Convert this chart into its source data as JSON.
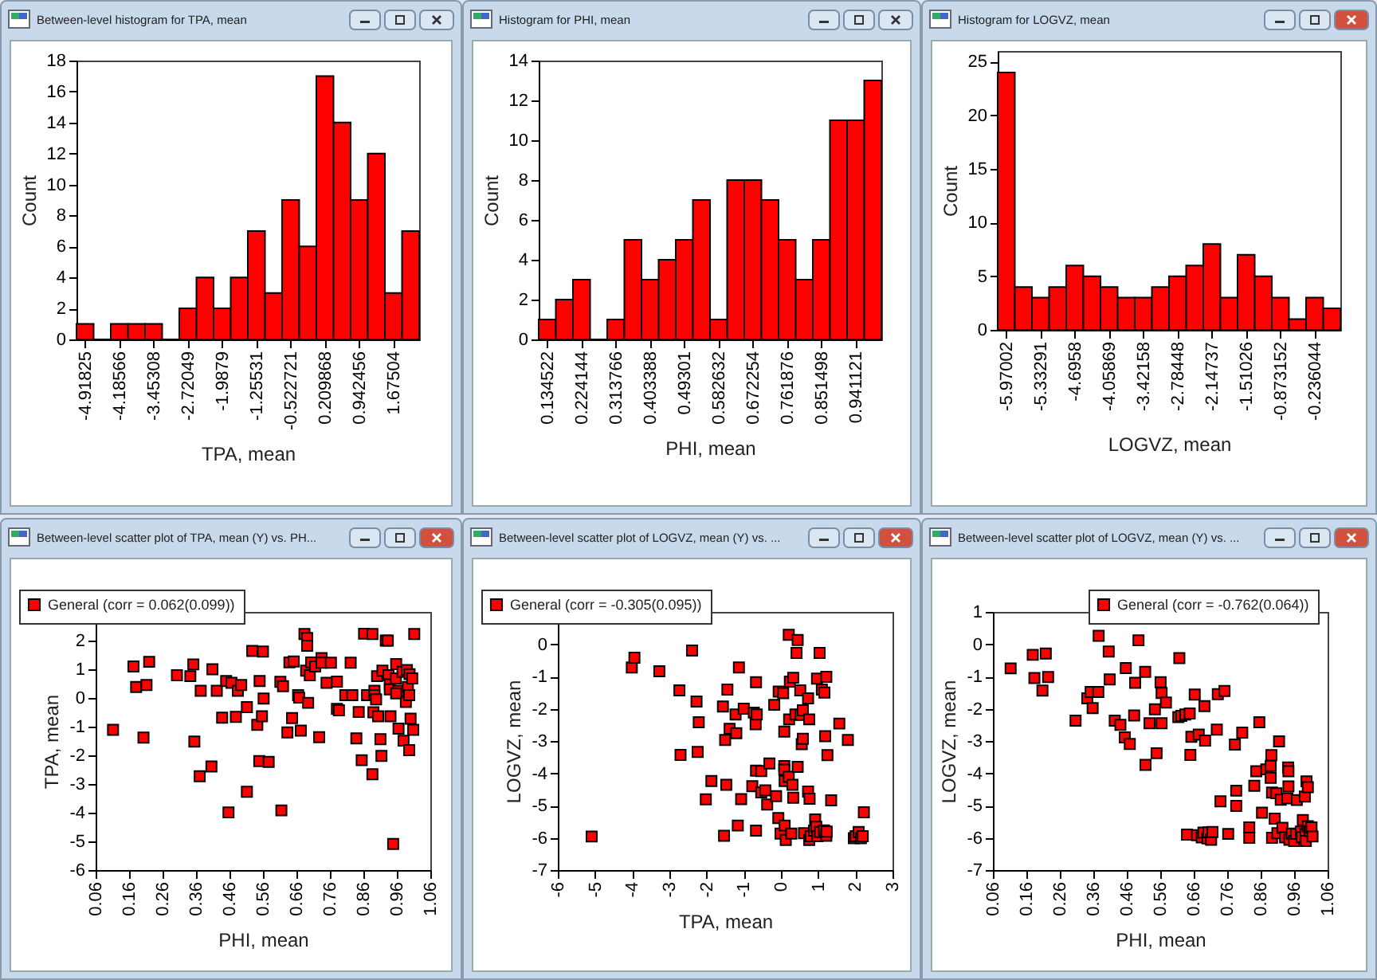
{
  "chart_data": [
    {
      "type": "histogram",
      "title": "Between-level histogram for TPA, mean",
      "xlabel": "TPA, mean",
      "ylabel": "Count",
      "color": "#ff0000",
      "bins": [
        -5.1014,
        -4.7351,
        -4.3688,
        -4.0025,
        -3.6362,
        -3.2699,
        -2.9036,
        -2.5373,
        -2.171,
        -1.8047,
        -1.4384,
        -1.0721,
        -0.7058,
        -0.3395,
        0.0268,
        0.3931,
        0.7594,
        1.1257,
        1.492,
        1.8583,
        2.2246
      ],
      "values": [
        1,
        0,
        1,
        1,
        1,
        0,
        2,
        4,
        2,
        4,
        7,
        3,
        9,
        6,
        17,
        14,
        9,
        12,
        3,
        7
      ],
      "xlim": [
        -5.1014,
        2.2246
      ],
      "xticks": [
        -4.91825,
        -4.18566,
        -3.45308,
        -2.72049,
        -1.9879,
        -1.25531,
        -0.522721,
        0.209868,
        0.942456,
        1.67504
      ],
      "ylim": [
        0,
        18
      ],
      "yticks": [
        0,
        2,
        4,
        6,
        8,
        10,
        12,
        14,
        16,
        18
      ]
    },
    {
      "type": "histogram",
      "title": "Histogram for PHI, mean",
      "xlabel": "PHI, mean",
      "ylabel": "Count",
      "color": "#ff0000",
      "bins": [
        0.11212,
        0.15693,
        0.20174,
        0.24655,
        0.29136,
        0.33617,
        0.38098,
        0.42579,
        0.4706,
        0.51541,
        0.56022,
        0.60503,
        0.64984,
        0.69465,
        0.73946,
        0.78427,
        0.82908,
        0.87389,
        0.9187,
        0.96351,
        1.00832
      ],
      "values": [
        1,
        2,
        3,
        0,
        1,
        5,
        3,
        4,
        5,
        7,
        1,
        8,
        8,
        7,
        5,
        3,
        5,
        11,
        11,
        13
      ],
      "xlim": [
        0.11212,
        1.00832
      ],
      "xticks": [
        0.134522,
        0.224144,
        0.313766,
        0.403388,
        0.49301,
        0.582632,
        0.672254,
        0.761876,
        0.851498,
        0.941121
      ],
      "ylim": [
        0,
        14
      ],
      "yticks": [
        0,
        2,
        4,
        6,
        8,
        10,
        12,
        14
      ]
    },
    {
      "type": "histogram",
      "title": "Histogram for LOGVZ, mean",
      "xlabel": "LOGVZ, mean",
      "ylabel": "Count",
      "color": "#ff0000",
      "bins": [
        -6.1293,
        -5.8108,
        -5.4922,
        -5.1736,
        -4.8551,
        -4.5365,
        -4.218,
        -3.8994,
        -3.5809,
        -3.2623,
        -2.9438,
        -2.6252,
        -2.3066,
        -1.9881,
        -1.6695,
        -1.351,
        -1.0324,
        -0.7139,
        -0.3953,
        -0.0768,
        0.2418
      ],
      "values": [
        24,
        4,
        3,
        4,
        6,
        5,
        4,
        3,
        3,
        4,
        5,
        6,
        8,
        3,
        7,
        5,
        3,
        1,
        3,
        2
      ],
      "xlim": [
        -6.1293,
        0.2418
      ],
      "xticks": [
        -5.97002,
        -5.33291,
        -4.6958,
        -4.05869,
        -3.42158,
        -2.78448,
        -2.14737,
        -1.51026,
        -0.873152,
        -0.236044
      ],
      "ylim": [
        0,
        26
      ],
      "yticks": [
        0,
        5,
        10,
        15,
        20,
        25
      ]
    },
    {
      "type": "scatter",
      "title": "Between-level scatter plot of TPA, mean (Y) vs. PH...",
      "xlabel": "PHI, mean",
      "ylabel": "TPA, mean",
      "marker": "square",
      "legend": "top left",
      "x": [
        0.112,
        0.173,
        0.181,
        0.203,
        0.212,
        0.22,
        0.303,
        0.343,
        0.352,
        0.355,
        0.374,
        0.371,
        0.406,
        0.409,
        0.422,
        0.438,
        0.45,
        0.457,
        0.466,
        0.479,
        0.485,
        0.495,
        0.512,
        0.512,
        0.528,
        0.543,
        0.55,
        0.549,
        0.56,
        0.562,
        0.557,
        0.577,
        0.612,
        0.615,
        0.62,
        0.633,
        0.639,
        0.647,
        0.652,
        0.665,
        0.668,
        0.673,
        0.684,
        0.692,
        0.692,
        0.689,
        0.695,
        0.7,
        0.704,
        0.716,
        0.728,
        0.735,
        0.735,
        0.75,
        0.763,
        0.781,
        0.781,
        0.787,
        0.806,
        0.822,
        0.827,
        0.839,
        0.846,
        0.855,
        0.862,
        0.871,
        0.887,
        0.887,
        0.89,
        0.893,
        0.893,
        0.898,
        0.901,
        0.904,
        0.911,
        0.914,
        0.917,
        0.927,
        0.933,
        0.935,
        0.939,
        0.939,
        0.941,
        0.949,
        0.957,
        0.958,
        0.965,
        0.965,
        0.977,
        0.98,
        0.987,
        0.99,
        0.993,
        0.997,
        0.997,
        0.998,
        1.001,
        1.006,
        1.009,
        1.012,
        0.958
      ],
      "series": [
        {
          "name": "General (corr = 0.062(0.099))",
          "color": "#ff0000",
          "values": [
            -1.11,
            1.1,
            0.38,
            -1.38,
            0.45,
            1.26,
            0.79,
            0.76,
            1.17,
            -1.52,
            0.25,
            -2.73,
            -2.39,
            1,
            0.25,
            -0.69,
            0.59,
            -3.99,
            0.53,
            -0.66,
            0.25,
            0.45,
            -0.32,
            -3.27,
            1.64,
            -0.94,
            0.59,
            -2.2,
            1.62,
            -0.02,
            -0.64,
            -2.23,
            0.56,
            -3.92,
            0.41,
            -1.2,
            1.24,
            -0.7,
            1.27,
            0.1,
            0.01,
            -1.14,
            2.23,
            2.09,
            1.82,
            0.95,
            -0.17,
            0.79,
            1.24,
            1.1,
            -1.37,
            1.39,
            1.23,
            0.53,
            1.23,
            0.57,
            -0.38,
            -0.43,
            0.1,
            1.23,
            0.1,
            -1.41,
            -0.49,
            -2.17,
            2.24,
            0.1,
            2.23,
            -2.66,
            -0.5,
            0.25,
            0.1,
            -0.05,
            0.76,
            -0.64,
            -1.44,
            -2.02,
            0.95,
            2,
            2,
            0.79,
            0.47,
            0.3,
            -0.64,
            -5.09,
            0.68,
            1.18,
            0.25,
            -1.07,
            0.91,
            -1.49,
            -0.14,
            0.97,
            0.38,
            0.1,
            -1.82,
            0.83,
            -0.72,
            0.68,
            -1.11,
            2.23,
            0.16
          ]
        }
      ],
      "xlim": [
        0.06,
        1.06
      ],
      "xticks": [
        0.06,
        0.16,
        0.26,
        0.36,
        0.46,
        0.56,
        0.66,
        0.76,
        0.86,
        0.96,
        1.06
      ],
      "ylim": [
        -6,
        3
      ],
      "yticks": [
        -6,
        -5,
        -4,
        -3,
        -2,
        -1,
        0,
        1,
        2
      ]
    },
    {
      "type": "scatter",
      "title": "Between-level scatter plot of LOGVZ, mean (Y) vs. ...",
      "xlabel": "TPA, mean",
      "ylabel": "LOGVZ, mean",
      "marker": "square",
      "legend": "top left",
      "x": [
        -5.09,
        -4.01,
        -3.94,
        -3.27,
        -2.73,
        -2.7,
        -2.39,
        -2.27,
        -2.24,
        -2.21,
        -2.02,
        -1.87,
        -1.56,
        -1.53,
        -1.5,
        -1.47,
        -1.44,
        -1.38,
        -1.22,
        -1.2,
        -1.16,
        -1.13,
        -1.07,
        -1,
        -0.77,
        -0.73,
        -0.68,
        -0.67,
        -0.67,
        -0.65,
        -0.67,
        -0.53,
        -0.53,
        -0.42,
        -0.37,
        -0.31,
        -0.18,
        -0.13,
        -0.07,
        -0.06,
        -0.01,
        0.06,
        0.09,
        0.09,
        0.09,
        0.1,
        0.1,
        0.13,
        0.21,
        0.21,
        0.22,
        0.24,
        0.28,
        0.31,
        0.33,
        0.33,
        0.39,
        0.45,
        0.45,
        0.42,
        0.52,
        0.53,
        0.56,
        0.59,
        0.59,
        0.62,
        0.73,
        0.73,
        0.76,
        0.76,
        0.77,
        0.8,
        0.89,
        0.92,
        0.95,
        0.97,
        0.98,
        1.04,
        1.05,
        1.1,
        1.16,
        1.17,
        1.19,
        1.22,
        1.22,
        1.23,
        1.25,
        1.35,
        1.57,
        1.8,
        1.96,
        2.01,
        2.09,
        2.15,
        2.2,
        2.23
      ],
      "series": [
        {
          "name": "General (corr = -0.305(0.095))",
          "color": "#ff0000",
          "values": [
            -5.96,
            -0.72,
            -0.42,
            -0.84,
            -1.43,
            -3.43,
            -0.2,
            -1.78,
            -3.34,
            -2.42,
            -4.81,
            -4.24,
            -1.93,
            -5.94,
            -2.97,
            -4.36,
            -1.41,
            -2.62,
            -2.18,
            -2.76,
            -5.62,
            -0.72,
            -4.8,
            -2,
            -4.4,
            -2.12,
            -2.48,
            -1.18,
            -5.78,
            -2.18,
            -3.92,
            -3.93,
            -4.59,
            -4.53,
            -4.97,
            -3.7,
            -1.88,
            -4.71,
            -5.39,
            -1.47,
            -5.87,
            -1.52,
            -3.78,
            -3.89,
            -2.71,
            -4.24,
            -5.62,
            -6.07,
            0.29,
            -4.11,
            -2.33,
            -1.16,
            -5.87,
            -4.36,
            -1.04,
            -4.76,
            -2.18,
            0.13,
            -3.8,
            -0.27,
            -1.43,
            -2.19,
            -3.1,
            -2.05,
            -2.93,
            -5.86,
            -1.68,
            -4.57,
            -6.07,
            -2.33,
            -4.79,
            -5.95,
            -5.78,
            -5.43,
            -5.66,
            -1.07,
            -5.95,
            -0.27,
            -5.82,
            -1.41,
            -5.77,
            -1.5,
            -2.85,
            -1.01,
            -5.94,
            -5.81,
            -3.44,
            -4.84,
            -2.46,
            -2.97,
            -6.01,
            -5.95,
            -5.82,
            -6.01,
            -5.95,
            -5.21
          ]
        }
      ],
      "xlim": [
        -6,
        3
      ],
      "xticks": [
        -6,
        -5,
        -4,
        -3,
        -2,
        -1,
        0,
        1,
        2,
        3
      ],
      "ylim": [
        -7,
        1
      ],
      "yticks": [
        -7,
        -6,
        -5,
        -4,
        -3,
        -2,
        -1,
        0
      ]
    },
    {
      "type": "scatter",
      "title": "Between-level scatter plot of LOGVZ, mean (Y) vs. ...",
      "xlabel": "PHI, mean",
      "ylabel": "LOGVZ, mean",
      "marker": "square",
      "legend": "top right",
      "x": [
        0.113,
        0.179,
        0.184,
        0.208,
        0.218,
        0.225,
        0.307,
        0.342,
        0.352,
        0.358,
        0.375,
        0.376,
        0.406,
        0.409,
        0.424,
        0.441,
        0.454,
        0.457,
        0.469,
        0.482,
        0.485,
        0.495,
        0.515,
        0.516,
        0.528,
        0.544,
        0.549,
        0.561,
        0.564,
        0.564,
        0.577,
        0.614,
        0.617,
        0.623,
        0.635,
        0.64,
        0.648,
        0.65,
        0.653,
        0.663,
        0.67,
        0.675,
        0.684,
        0.689,
        0.692,
        0.694,
        0.701,
        0.704,
        0.712,
        0.716,
        0.729,
        0.732,
        0.74,
        0.752,
        0.763,
        0.783,
        0.787,
        0.787,
        0.805,
        0.826,
        0.826,
        0.841,
        0.847,
        0.856,
        0.864,
        0.877,
        0.89,
        0.89,
        0.892,
        0.894,
        0.894,
        0.902,
        0.907,
        0.91,
        0.915,
        0.92,
        0.925,
        0.933,
        0.94,
        0.942,
        0.943,
        0.943,
        0.946,
        0.953,
        0.96,
        0.966,
        0.968,
        0.98,
        0.983,
        0.986,
        0.992,
        0.994,
        0.995,
        0.997,
        1.001,
        1.001,
        1.007,
        1.012,
        1.015
      ],
      "series": [
        {
          "name": "General (corr = -0.762(0.064))",
          "color": "#ff0000",
          "values": [
            -0.75,
            -0.33,
            -1.05,
            -1.44,
            -0.29,
            -1.02,
            -2.37,
            -1.68,
            -1.48,
            -1.98,
            -1.48,
            0.26,
            -0.23,
            -1.09,
            -2.37,
            -2.5,
            -2.89,
            -0.74,
            -3.09,
            -2.21,
            -1.2,
            0.12,
            -0.86,
            -3.74,
            -2.45,
            -2.02,
            -3.38,
            -1.18,
            -1.51,
            -2.45,
            -1.81,
            -2.26,
            -0.43,
            -2.22,
            -2.18,
            -5.9,
            -2.15,
            -3.43,
            -2.87,
            -1.56,
            -5.92,
            -2.8,
            -5.99,
            -5.84,
            -1.92,
            -2.99,
            -6.02,
            -5.83,
            -6.06,
            -5.82,
            -2.65,
            -1.55,
            -4.87,
            -1.45,
            -5.88,
            -3.11,
            -4.54,
            -5.01,
            -2.74,
            -5.68,
            -6,
            -4.39,
            -3.94,
            -2.42,
            -5.22,
            -3.88,
            -3.77,
            -4.14,
            -3.44,
            -4.6,
            -6,
            -5.41,
            -4.62,
            -5.86,
            -3.01,
            -4.82,
            -5.69,
            -5.99,
            -4.78,
            -3.82,
            -4.41,
            -3.94,
            -6.06,
            -5.87,
            -6.1,
            -5.88,
            -4.83,
            -5.81,
            -5.98,
            -5.45,
            -4.72,
            -5.88,
            -6.1,
            -4.25,
            -4.43,
            -5.64,
            -5.79,
            -5.68,
            -5.96
          ]
        }
      ],
      "xlim": [
        0.06,
        1.06
      ],
      "xticks": [
        0.06,
        0.16,
        0.26,
        0.36,
        0.46,
        0.56,
        0.66,
        0.76,
        0.86,
        0.96,
        1.06
      ],
      "ylim": [
        -7,
        1
      ],
      "yticks": [
        -7,
        -6,
        -5,
        -4,
        -3,
        -2,
        -1,
        0,
        1
      ]
    }
  ]
}
